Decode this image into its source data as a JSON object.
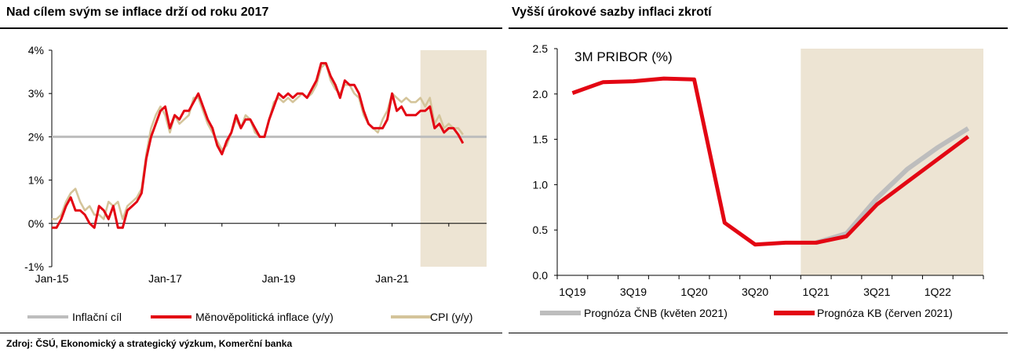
{
  "left_panel": {
    "title": "Nad cílem svým se inflace drží od roku 2017"
  },
  "right_panel": {
    "title": "Vyšší úrokové sazby inflaci zkrotí"
  },
  "source": "Zdroj: ČSÚ, Ekonomický a strategický výzkum, Komerční banka",
  "colors": {
    "red": "#e30613",
    "beige": "#d4c49a",
    "grey": "#bdbdbd",
    "shade": "#ede4d3"
  },
  "chart_data": [
    {
      "type": "line",
      "ylim": [
        -1,
        4
      ],
      "yticks": [
        "4%",
        "3%",
        "2%",
        "1%",
        "0%",
        "-1%"
      ],
      "yticks_values": [
        4,
        3,
        2,
        1,
        0,
        -1
      ],
      "xticks": [
        "Jan-15",
        "Jan-17",
        "Jan-19",
        "Jan-21"
      ],
      "x_start": "2015-01",
      "x_end": "2022-09",
      "forecast_shade_from": "2021-07",
      "grid": false,
      "legend": "bottom",
      "series": [
        {
          "name": "Inflační cíl",
          "color": "#bdbdbd",
          "values": [
            2,
            2,
            2,
            2,
            2,
            2,
            2,
            2,
            2,
            2,
            2,
            2,
            2,
            2,
            2,
            2,
            2,
            2,
            2,
            2,
            2,
            2,
            2,
            2,
            2,
            2,
            2,
            2,
            2,
            2,
            2,
            2,
            2,
            2,
            2,
            2,
            2,
            2,
            2,
            2,
            2,
            2,
            2,
            2,
            2,
            2,
            2,
            2,
            2,
            2,
            2,
            2,
            2,
            2,
            2,
            2,
            2,
            2,
            2,
            2,
            2,
            2,
            2,
            2,
            2,
            2,
            2,
            2,
            2,
            2,
            2,
            2,
            2,
            2,
            2,
            2,
            2,
            2,
            2,
            2,
            2,
            2,
            2,
            2,
            2,
            2,
            2,
            2,
            2,
            2,
            2,
            2,
            2
          ]
        },
        {
          "name": "Měnověpolitická inflace (y/y)",
          "color": "#e30613",
          "values": [
            -0.1,
            -0.1,
            0.1,
            0.4,
            0.6,
            0.3,
            0.3,
            0.2,
            0.0,
            -0.1,
            0.4,
            0.3,
            0.1,
            0.4,
            -0.1,
            -0.1,
            0.3,
            0.4,
            0.5,
            0.7,
            1.5,
            2.0,
            2.3,
            2.6,
            2.7,
            2.2,
            2.5,
            2.4,
            2.6,
            2.6,
            2.8,
            3.0,
            2.7,
            2.4,
            2.2,
            1.8,
            1.6,
            1.9,
            2.1,
            2.5,
            2.2,
            2.4,
            2.4,
            2.2,
            2.0,
            2.0,
            2.4,
            2.7,
            3.0,
            2.9,
            3.0,
            2.9,
            3.0,
            3.0,
            2.9,
            3.1,
            3.3,
            3.7,
            3.7,
            3.4,
            3.2,
            2.9,
            3.3,
            3.2,
            3.2,
            3.0,
            2.6,
            2.3,
            2.2,
            2.2,
            2.2,
            2.4,
            3.0,
            2.6,
            2.7,
            2.5,
            2.5,
            2.5,
            2.6,
            2.6,
            2.7,
            2.2,
            2.3,
            2.1,
            2.2,
            2.2,
            2.05,
            1.85
          ]
        },
        {
          "name": "CPI (y/y)",
          "color": "#d4c49a",
          "values": [
            0.1,
            0.1,
            0.2,
            0.5,
            0.7,
            0.8,
            0.5,
            0.3,
            0.4,
            0.2,
            0.2,
            0.1,
            0.5,
            0.4,
            0.5,
            0.1,
            0.4,
            0.5,
            0.6,
            0.8,
            1.6,
            2.2,
            2.5,
            2.7,
            2.5,
            2.1,
            2.5,
            2.3,
            2.4,
            2.5,
            2.9,
            2.9,
            2.6,
            2.3,
            2.1,
            1.9,
            1.7,
            1.8,
            2.1,
            2.4,
            2.2,
            2.5,
            2.4,
            2.1,
            2.0,
            2.0,
            2.4,
            2.8,
            2.9,
            2.8,
            2.9,
            2.8,
            2.9,
            3.0,
            2.9,
            3.0,
            3.2,
            3.6,
            3.7,
            3.3,
            3.1,
            3.0,
            3.2,
            3.2,
            3.0,
            2.9,
            2.5,
            2.3,
            2.2,
            2.1,
            2.4,
            2.6,
            3.0,
            2.9,
            2.8,
            2.9,
            2.8,
            2.8,
            2.9,
            2.7,
            2.9,
            2.3,
            2.5,
            2.2,
            2.3,
            2.2,
            2.2,
            2.05
          ]
        }
      ]
    },
    {
      "type": "line",
      "annotation": "3M PRIBOR  (%)",
      "ylim": [
        0,
        2.5
      ],
      "yticks": [
        "2.5",
        "2.0",
        "1.5",
        "1.0",
        "0.5",
        "0.0"
      ],
      "yticks_values": [
        2.5,
        2.0,
        1.5,
        1.0,
        0.5,
        0.0
      ],
      "xticks": [
        "1Q19",
        "3Q19",
        "1Q20",
        "3Q20",
        "1Q21",
        "3Q21",
        "1Q22"
      ],
      "x_quarters": [
        "1Q19",
        "2Q19",
        "3Q19",
        "4Q19",
        "1Q20",
        "2Q20",
        "3Q20",
        "4Q20",
        "1Q21",
        "2Q21",
        "3Q21",
        "4Q21",
        "1Q22",
        "2Q22"
      ],
      "forecast_shade_from": "1Q21",
      "grid": false,
      "legend": "bottom",
      "series": [
        {
          "name": "Prognóza ČNB (květen 2021)",
          "color": "#bdbdbd",
          "x": [
            8,
            9,
            10,
            11,
            12,
            13
          ],
          "values": [
            0.36,
            0.46,
            0.85,
            1.17,
            1.41,
            1.62
          ]
        },
        {
          "name": "Prognóza KB (červen 2021)",
          "color": "#e30613",
          "x": [
            0,
            1,
            2,
            3,
            4,
            5,
            6,
            7,
            8,
            9,
            10,
            11,
            12,
            13
          ],
          "values": [
            2.01,
            2.13,
            2.14,
            2.17,
            2.16,
            0.58,
            0.34,
            0.36,
            0.36,
            0.43,
            0.78,
            1.03,
            1.28,
            1.53
          ]
        }
      ]
    }
  ]
}
